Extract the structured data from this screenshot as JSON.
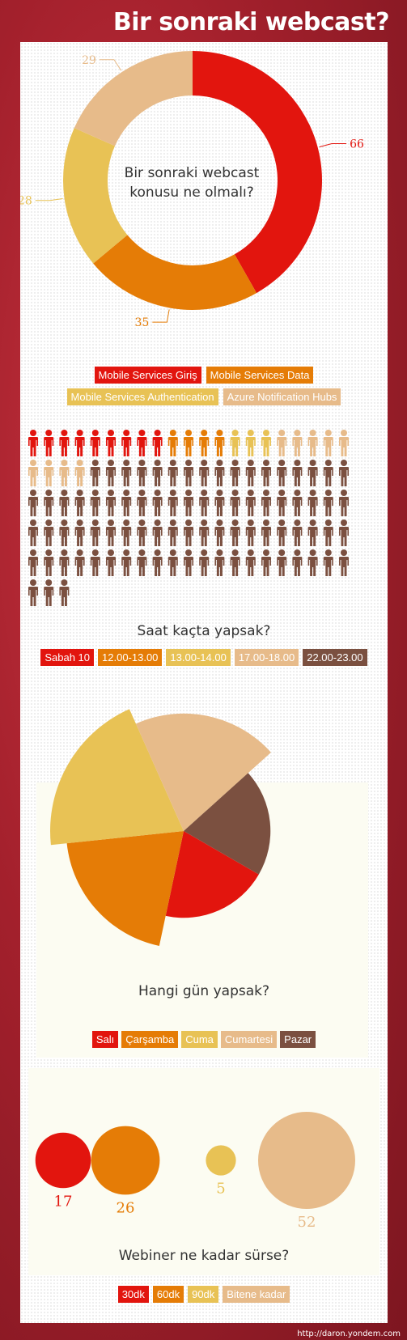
{
  "title": "Bir sonraki webcast?",
  "colors": {
    "red": "#e2150e",
    "orange": "#e57c06",
    "yellow": "#e8c255",
    "beige": "#e7bb8a",
    "brown": "#7b5040"
  },
  "chart_data": [
    {
      "type": "donut",
      "question": "Bir sonraki webcast konusu ne olmalı?",
      "question_line1": "Bir sonraki webcast",
      "question_line2": "konusu ne olmalı?",
      "categories": [
        "Mobile Services Giriş",
        "Mobile Services Data",
        "Mobile Services Authentication",
        "Azure Notification Hubs"
      ],
      "values": [
        66,
        35,
        28,
        29
      ],
      "value_labels": [
        "66",
        "35",
        "28",
        "29"
      ]
    },
    {
      "type": "pictogram",
      "question": "Saat kaçta yapsak?",
      "categories": [
        "Sabah 10",
        "12.00-13.00",
        "13.00-14.00",
        "17.00-18.00",
        "22.00-23.00"
      ],
      "values": [
        9,
        4,
        3,
        9,
        83
      ]
    },
    {
      "type": "polar-area",
      "question": "Hangi gün yapsak?",
      "categories": [
        "Salı",
        "Çarşamba",
        "Cuma",
        "Cumartesi",
        "Pazar"
      ],
      "angles_deg": [
        72,
        72,
        72,
        72,
        72
      ],
      "relative_radius": [
        0.65,
        0.88,
        1.0,
        0.88,
        0.65
      ]
    },
    {
      "type": "bubble",
      "question": "Webiner ne kadar sürse?",
      "categories": [
        "30dk",
        "60dk",
        "90dk",
        "Bitene kadar"
      ],
      "values": [
        17,
        26,
        5,
        52
      ],
      "value_labels": [
        "17",
        "26",
        "5",
        "52"
      ]
    }
  ],
  "footer": "http://daron.yondem.com"
}
